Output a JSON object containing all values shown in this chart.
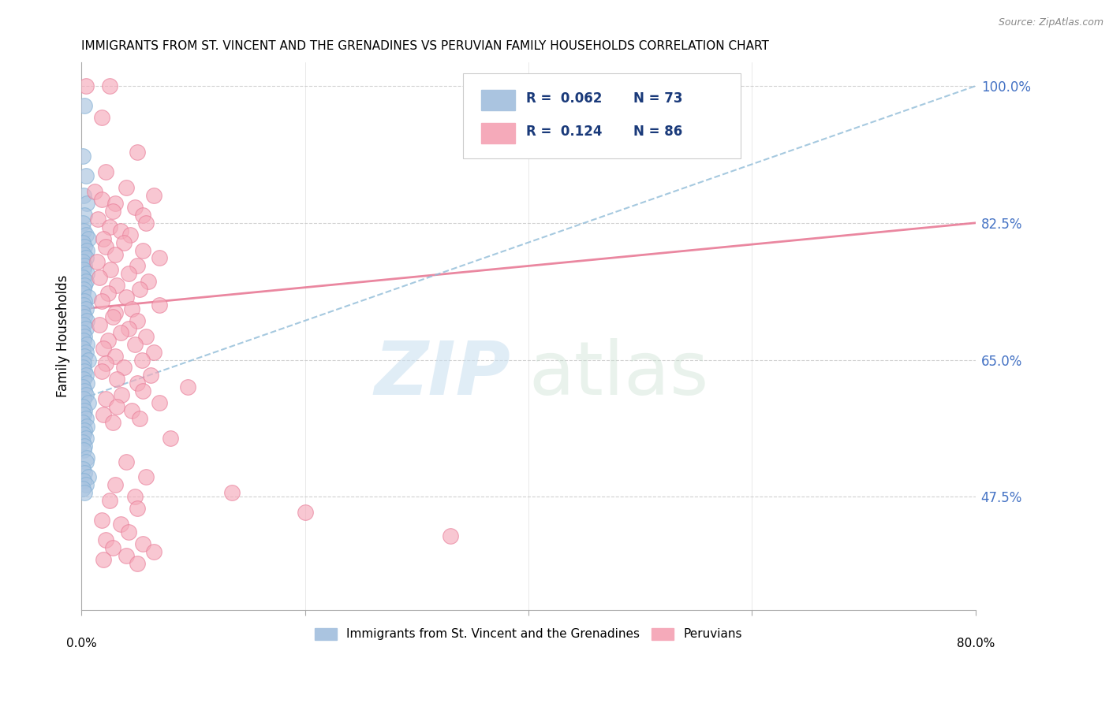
{
  "title": "IMMIGRANTS FROM ST. VINCENT AND THE GRENADINES VS PERUVIAN FAMILY HOUSEHOLDS CORRELATION CHART",
  "source": "Source: ZipAtlas.com",
  "ylabel": "Family Households",
  "right_ytick_labels": [
    "100.0%",
    "82.5%",
    "65.0%",
    "47.5%"
  ],
  "right_ytick_vals": [
    100.0,
    82.5,
    65.0,
    47.5
  ],
  "xmin": 0.0,
  "xmax": 80.0,
  "ymin": 33.0,
  "ymax": 103.0,
  "blue_R": "0.062",
  "blue_N": "73",
  "pink_R": "0.124",
  "pink_N": "86",
  "legend_label_blue": "Immigrants from St. Vincent and the Grenadines",
  "legend_label_pink": "Peruvians",
  "blue_color": "#aac4e0",
  "blue_edge_color": "#80afd4",
  "pink_color": "#f5aaba",
  "pink_edge_color": "#e87a96",
  "blue_line_color": "#90bcd8",
  "pink_line_color": "#e87a96",
  "watermark_zip": "ZIP",
  "watermark_atlas": "atlas",
  "blue_dots_x": [
    0.3,
    0.1,
    0.4,
    0.2,
    0.5,
    0.3,
    0.1,
    0.2,
    0.4,
    0.6,
    0.1,
    0.3,
    0.5,
    0.2,
    0.4,
    0.1,
    0.3,
    0.2,
    0.5,
    0.1,
    0.4,
    0.3,
    0.2,
    0.1,
    0.6,
    0.3,
    0.2,
    0.4,
    0.1,
    0.3,
    0.5,
    0.2,
    0.4,
    0.1,
    0.3,
    0.2,
    0.5,
    0.1,
    0.4,
    0.3,
    0.6,
    0.2,
    0.1,
    0.3,
    0.4,
    0.2,
    0.5,
    0.1,
    0.3,
    0.4,
    0.2,
    0.6,
    0.1,
    0.3,
    0.2,
    0.4,
    0.1,
    0.5,
    0.3,
    0.2,
    0.4,
    0.1,
    0.3,
    0.2,
    0.5,
    0.4,
    0.1,
    0.3,
    0.6,
    0.2,
    0.4,
    0.1,
    0.3
  ],
  "blue_dots_y": [
    97.5,
    91.0,
    88.5,
    86.0,
    85.0,
    83.5,
    82.5,
    81.5,
    81.0,
    80.5,
    80.0,
    79.5,
    79.0,
    78.5,
    78.0,
    77.5,
    77.0,
    76.5,
    76.0,
    75.5,
    75.0,
    74.5,
    74.0,
    73.5,
    73.0,
    72.5,
    72.0,
    71.5,
    71.0,
    70.5,
    70.0,
    69.5,
    69.0,
    68.5,
    68.0,
    67.5,
    67.0,
    66.5,
    66.0,
    65.5,
    65.0,
    64.5,
    64.0,
    63.5,
    63.0,
    62.5,
    62.0,
    61.5,
    61.0,
    60.5,
    60.0,
    59.5,
    59.0,
    58.5,
    58.0,
    57.5,
    57.0,
    56.5,
    56.0,
    55.5,
    55.0,
    54.5,
    54.0,
    53.5,
    52.5,
    52.0,
    51.0,
    50.5,
    50.0,
    49.5,
    49.0,
    48.5,
    48.0
  ],
  "pink_dots_x": [
    0.4,
    2.5,
    1.8,
    5.0,
    2.2,
    4.0,
    1.2,
    6.5,
    1.8,
    3.0,
    4.8,
    2.8,
    5.5,
    1.5,
    5.8,
    2.5,
    3.5,
    4.4,
    2.0,
    3.8,
    2.2,
    5.5,
    3.0,
    7.0,
    1.4,
    5.0,
    2.6,
    4.2,
    1.6,
    6.0,
    3.2,
    5.2,
    2.4,
    4.0,
    1.8,
    7.0,
    4.5,
    3.0,
    2.8,
    5.0,
    1.6,
    4.2,
    3.5,
    5.8,
    2.4,
    4.8,
    2.0,
    6.5,
    3.0,
    5.4,
    2.2,
    3.8,
    1.8,
    6.2,
    3.2,
    5.0,
    9.5,
    5.5,
    3.6,
    2.2,
    7.0,
    3.2,
    4.5,
    2.0,
    5.2,
    2.8,
    8.0,
    4.0,
    5.8,
    3.0,
    13.5,
    4.8,
    2.5,
    5.0,
    20.0,
    1.8,
    3.5,
    4.2,
    33.0,
    2.2,
    5.5,
    2.8,
    6.5,
    4.0,
    2.0,
    5.0
  ],
  "pink_dots_y": [
    100.0,
    100.0,
    96.0,
    91.5,
    89.0,
    87.0,
    86.5,
    86.0,
    85.5,
    85.0,
    84.5,
    84.0,
    83.5,
    83.0,
    82.5,
    82.0,
    81.5,
    81.0,
    80.5,
    80.0,
    79.5,
    79.0,
    78.5,
    78.0,
    77.5,
    77.0,
    76.5,
    76.0,
    75.5,
    75.0,
    74.5,
    74.0,
    73.5,
    73.0,
    72.5,
    72.0,
    71.5,
    71.0,
    70.5,
    70.0,
    69.5,
    69.0,
    68.5,
    68.0,
    67.5,
    67.0,
    66.5,
    66.0,
    65.5,
    65.0,
    64.5,
    64.0,
    63.5,
    63.0,
    62.5,
    62.0,
    61.5,
    61.0,
    60.5,
    60.0,
    59.5,
    59.0,
    58.5,
    58.0,
    57.5,
    57.0,
    55.0,
    52.0,
    50.0,
    49.0,
    48.0,
    47.5,
    47.0,
    46.0,
    45.5,
    44.5,
    44.0,
    43.0,
    42.5,
    42.0,
    41.5,
    41.0,
    40.5,
    40.0,
    39.5,
    39.0
  ],
  "pink_line_y0": 71.5,
  "pink_line_y1": 82.5,
  "blue_line_y0": 60.0,
  "blue_line_y1": 100.0
}
